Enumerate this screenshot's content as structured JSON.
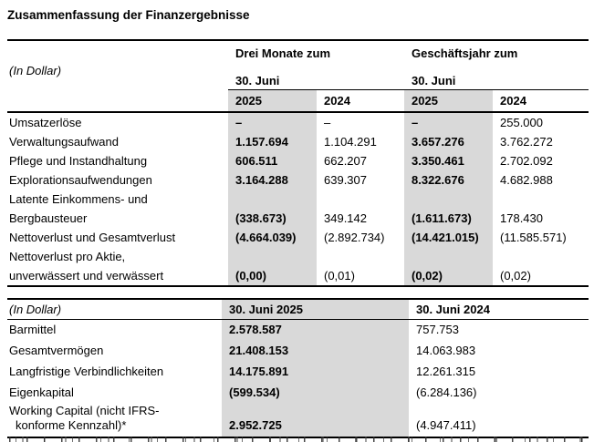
{
  "title": "Zusammenfassung der Finanzergebnisse",
  "colors": {
    "shading": "#D9D9D9",
    "text": "#000000"
  },
  "table1": {
    "unit_label": "(In Dollar)",
    "group_headers": [
      "Drei Monate zum",
      "Geschäftsjahr zum"
    ],
    "subheader": "30. Juni",
    "year_headers": [
      "2025",
      "2024",
      "2025",
      "2024"
    ],
    "rows": [
      {
        "label": "Umsatzerlöse",
        "values": [
          "–",
          "–",
          "–",
          "255.000"
        ]
      },
      {
        "label": "Verwaltungsaufwand",
        "values": [
          "1.157.694",
          "1.104.291",
          "3.657.276",
          "3.762.272"
        ]
      },
      {
        "label": "Pflege und Instandhaltung",
        "values": [
          "606.511",
          "662.207",
          "3.350.461",
          "2.702.092"
        ]
      },
      {
        "label": "Explorationsaufwendungen",
        "values": [
          "3.164.288",
          "639.307",
          "8.322.676",
          "4.682.988"
        ]
      },
      {
        "label": "Latente Einkommens- und\nBergbausteuer",
        "values": [
          "(338.673)",
          "349.142",
          "(1.611.673)",
          "178.430"
        ]
      },
      {
        "label": "Nettoverlust und Gesamtverlust",
        "values": [
          "(4.664.039)",
          "(2.892.734)",
          "(14.421.015)",
          "(11.585.571)"
        ]
      },
      {
        "label": "Nettoverlust pro Aktie,\nunverwässert und verwässert",
        "values": [
          "(0,00)",
          "(0,01)",
          "(0,02)",
          "(0,02)"
        ]
      }
    ]
  },
  "table2": {
    "unit_label": "(In Dollar)",
    "year_headers": [
      "30. Juni 2025",
      "30. Juni 2024"
    ],
    "rows": [
      {
        "label": "Barmittel",
        "values": [
          "2.578.587",
          "757.753"
        ]
      },
      {
        "label": "Gesamtvermögen",
        "values": [
          "21.408.153",
          "14.063.983"
        ]
      },
      {
        "label": "Langfristige Verbindlichkeiten",
        "values": [
          "14.175.891",
          "12.261.315"
        ]
      },
      {
        "label": "Eigenkapital",
        "values": [
          "(599.534)",
          "(6.284.136)"
        ]
      },
      {
        "label": "Working Capital (nicht IFRS-\nkonforme Kennzahl)*",
        "values": [
          "2.952.725",
          "(4.947.411)"
        ]
      }
    ]
  }
}
